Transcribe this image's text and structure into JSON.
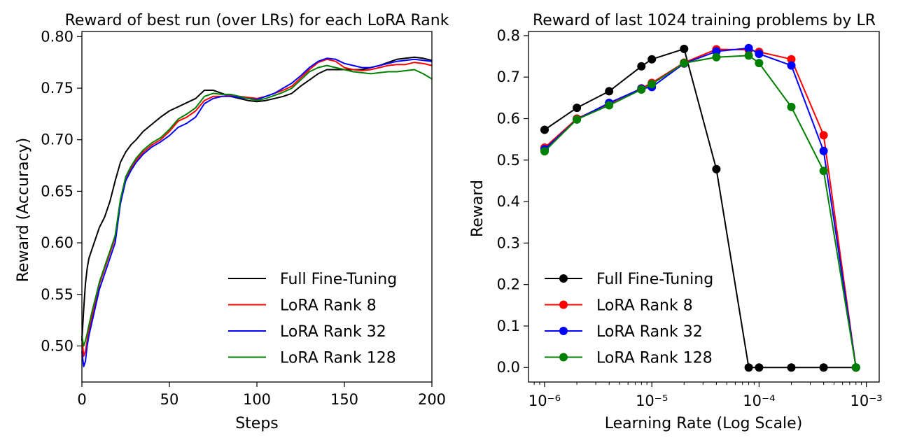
{
  "chart_data": [
    {
      "type": "line",
      "title": "Reward of best run (over LRs) for each LoRA Rank",
      "xlabel": "Steps",
      "ylabel": "Reward (Accuracy)",
      "xlim": [
        0,
        200
      ],
      "ylim": [
        0.465,
        0.805
      ],
      "xticks": [
        0,
        50,
        100,
        150,
        200
      ],
      "xtick_labels": [
        "0",
        "50",
        "100",
        "150",
        "200"
      ],
      "yticks": [
        0.5,
        0.55,
        0.6,
        0.65,
        0.7,
        0.75,
        0.8
      ],
      "ytick_labels": [
        "0.50",
        "0.55",
        "0.60",
        "0.65",
        "0.70",
        "0.75",
        "0.80"
      ],
      "legend_position": "lower-right",
      "grid": false,
      "series": [
        {
          "name": "Full Fine-Tuning",
          "color": "#000000",
          "x": [
            0,
            1,
            2,
            3,
            4,
            6,
            8,
            10,
            13,
            16,
            19,
            22,
            25,
            28,
            31,
            35,
            40,
            45,
            50,
            55,
            60,
            65,
            70,
            75,
            80,
            85,
            90,
            95,
            100,
            105,
            110,
            115,
            120,
            125,
            130,
            135,
            140,
            145,
            150,
            155,
            160,
            165,
            170,
            175,
            180,
            185,
            190,
            195,
            200
          ],
          "y": [
            0.505,
            0.535,
            0.56,
            0.575,
            0.585,
            0.595,
            0.605,
            0.615,
            0.625,
            0.64,
            0.66,
            0.678,
            0.688,
            0.695,
            0.7,
            0.708,
            0.715,
            0.722,
            0.728,
            0.732,
            0.736,
            0.74,
            0.748,
            0.748,
            0.745,
            0.742,
            0.74,
            0.738,
            0.737,
            0.738,
            0.74,
            0.742,
            0.745,
            0.752,
            0.758,
            0.764,
            0.768,
            0.768,
            0.768,
            0.768,
            0.768,
            0.77,
            0.772,
            0.775,
            0.778,
            0.779,
            0.78,
            0.779,
            0.777
          ]
        },
        {
          "name": "LoRA Rank 8",
          "color": "#ff0000",
          "x": [
            0,
            1,
            2,
            3,
            4,
            6,
            8,
            10,
            13,
            16,
            19,
            22,
            25,
            28,
            31,
            35,
            40,
            45,
            50,
            55,
            60,
            65,
            70,
            75,
            80,
            85,
            90,
            95,
            100,
            105,
            110,
            115,
            120,
            125,
            130,
            135,
            140,
            145,
            150,
            155,
            160,
            165,
            170,
            175,
            180,
            185,
            190,
            195,
            200
          ],
          "y": [
            0.51,
            0.49,
            0.495,
            0.505,
            0.515,
            0.53,
            0.545,
            0.56,
            0.575,
            0.59,
            0.605,
            0.64,
            0.662,
            0.672,
            0.68,
            0.688,
            0.695,
            0.7,
            0.708,
            0.718,
            0.722,
            0.728,
            0.738,
            0.742,
            0.742,
            0.743,
            0.742,
            0.741,
            0.74,
            0.742,
            0.745,
            0.748,
            0.752,
            0.76,
            0.768,
            0.775,
            0.778,
            0.776,
            0.77,
            0.768,
            0.767,
            0.768,
            0.77,
            0.772,
            0.773,
            0.773,
            0.775,
            0.774,
            0.772
          ]
        },
        {
          "name": "LoRA Rank 32",
          "color": "#0000ff",
          "x": [
            0,
            1,
            2,
            3,
            4,
            6,
            8,
            10,
            13,
            16,
            19,
            22,
            25,
            28,
            31,
            35,
            40,
            45,
            50,
            55,
            60,
            65,
            70,
            75,
            80,
            85,
            90,
            95,
            100,
            105,
            110,
            115,
            120,
            125,
            130,
            135,
            140,
            145,
            150,
            155,
            160,
            165,
            170,
            175,
            180,
            185,
            190,
            195,
            200
          ],
          "y": [
            0.495,
            0.48,
            0.485,
            0.5,
            0.51,
            0.525,
            0.54,
            0.555,
            0.57,
            0.585,
            0.6,
            0.638,
            0.66,
            0.67,
            0.678,
            0.686,
            0.693,
            0.698,
            0.704,
            0.712,
            0.716,
            0.722,
            0.735,
            0.74,
            0.742,
            0.742,
            0.741,
            0.74,
            0.739,
            0.742,
            0.745,
            0.75,
            0.755,
            0.762,
            0.77,
            0.776,
            0.779,
            0.778,
            0.774,
            0.772,
            0.77,
            0.77,
            0.772,
            0.774,
            0.776,
            0.777,
            0.778,
            0.777,
            0.776
          ]
        },
        {
          "name": "LoRA Rank 128",
          "color": "#008000",
          "x": [
            0,
            1,
            2,
            3,
            4,
            6,
            8,
            10,
            13,
            16,
            19,
            22,
            25,
            28,
            31,
            35,
            40,
            45,
            50,
            55,
            60,
            65,
            70,
            75,
            80,
            85,
            90,
            95,
            100,
            105,
            110,
            115,
            120,
            125,
            130,
            135,
            140,
            145,
            150,
            155,
            160,
            165,
            170,
            175,
            180,
            185,
            190,
            195,
            200
          ],
          "y": [
            0.51,
            0.5,
            0.505,
            0.512,
            0.52,
            0.535,
            0.548,
            0.562,
            0.577,
            0.592,
            0.607,
            0.642,
            0.664,
            0.674,
            0.682,
            0.69,
            0.697,
            0.702,
            0.71,
            0.72,
            0.725,
            0.731,
            0.742,
            0.745,
            0.744,
            0.744,
            0.742,
            0.74,
            0.738,
            0.74,
            0.743,
            0.746,
            0.75,
            0.758,
            0.766,
            0.77,
            0.772,
            0.77,
            0.768,
            0.766,
            0.765,
            0.764,
            0.765,
            0.766,
            0.766,
            0.767,
            0.768,
            0.764,
            0.759
          ]
        }
      ]
    },
    {
      "type": "line",
      "title": "Reward of last 1024 training problems by LR",
      "xlabel": "Learning Rate (Log Scale)",
      "ylabel": "Reward",
      "xscale": "log",
      "xlim_log10": [
        -6.15,
        -2.88
      ],
      "ylim": [
        -0.035,
        0.81
      ],
      "xticks_log10": [
        -6,
        -5,
        -4,
        -3
      ],
      "xtick_labels": [
        "10⁻⁶",
        "10⁻⁵",
        "10⁻⁴",
        "10⁻³"
      ],
      "yticks": [
        0.0,
        0.1,
        0.2,
        0.3,
        0.4,
        0.5,
        0.6,
        0.7,
        0.8
      ],
      "ytick_labels": [
        "0.0",
        "0.1",
        "0.2",
        "0.3",
        "0.4",
        "0.5",
        "0.6",
        "0.7",
        "0.8"
      ],
      "legend_position": "lower-left",
      "grid": false,
      "series": [
        {
          "name": "Full Fine-Tuning",
          "color": "#000000",
          "x": [
            1e-06,
            2e-06,
            4e-06,
            8e-06,
            1e-05,
            2e-05,
            4e-05,
            8e-05,
            0.0001,
            0.0002,
            0.0004,
            0.0008
          ],
          "y": [
            0.573,
            0.626,
            0.666,
            0.726,
            0.743,
            0.768,
            0.478,
            0.0,
            0.0,
            0.0,
            0.0,
            0.0
          ]
        },
        {
          "name": "LoRA Rank 8",
          "color": "#ff0000",
          "x": [
            1e-06,
            2e-06,
            4e-06,
            8e-06,
            1e-05,
            2e-05,
            4e-05,
            8e-05,
            0.0001,
            0.0002,
            0.0004,
            0.0008
          ],
          "y": [
            0.53,
            0.6,
            0.636,
            0.673,
            0.686,
            0.735,
            0.767,
            0.766,
            0.761,
            0.743,
            0.56,
            0.0
          ]
        },
        {
          "name": "LoRA Rank 32",
          "color": "#0000ff",
          "x": [
            1e-06,
            2e-06,
            4e-06,
            8e-06,
            1e-05,
            2e-05,
            4e-05,
            8e-05,
            0.0001,
            0.0002,
            0.0004,
            0.0008
          ],
          "y": [
            0.526,
            0.598,
            0.638,
            0.672,
            0.676,
            0.733,
            0.762,
            0.77,
            0.756,
            0.728,
            0.522,
            0.0
          ]
        },
        {
          "name": "LoRA Rank 128",
          "color": "#008000",
          "x": [
            1e-06,
            2e-06,
            4e-06,
            8e-06,
            1e-05,
            2e-05,
            4e-05,
            8e-05,
            0.0001,
            0.0002,
            0.0004,
            0.0008
          ],
          "y": [
            0.521,
            0.598,
            0.632,
            0.67,
            0.683,
            0.734,
            0.748,
            0.752,
            0.734,
            0.628,
            0.474,
            0.0
          ]
        }
      ]
    }
  ]
}
